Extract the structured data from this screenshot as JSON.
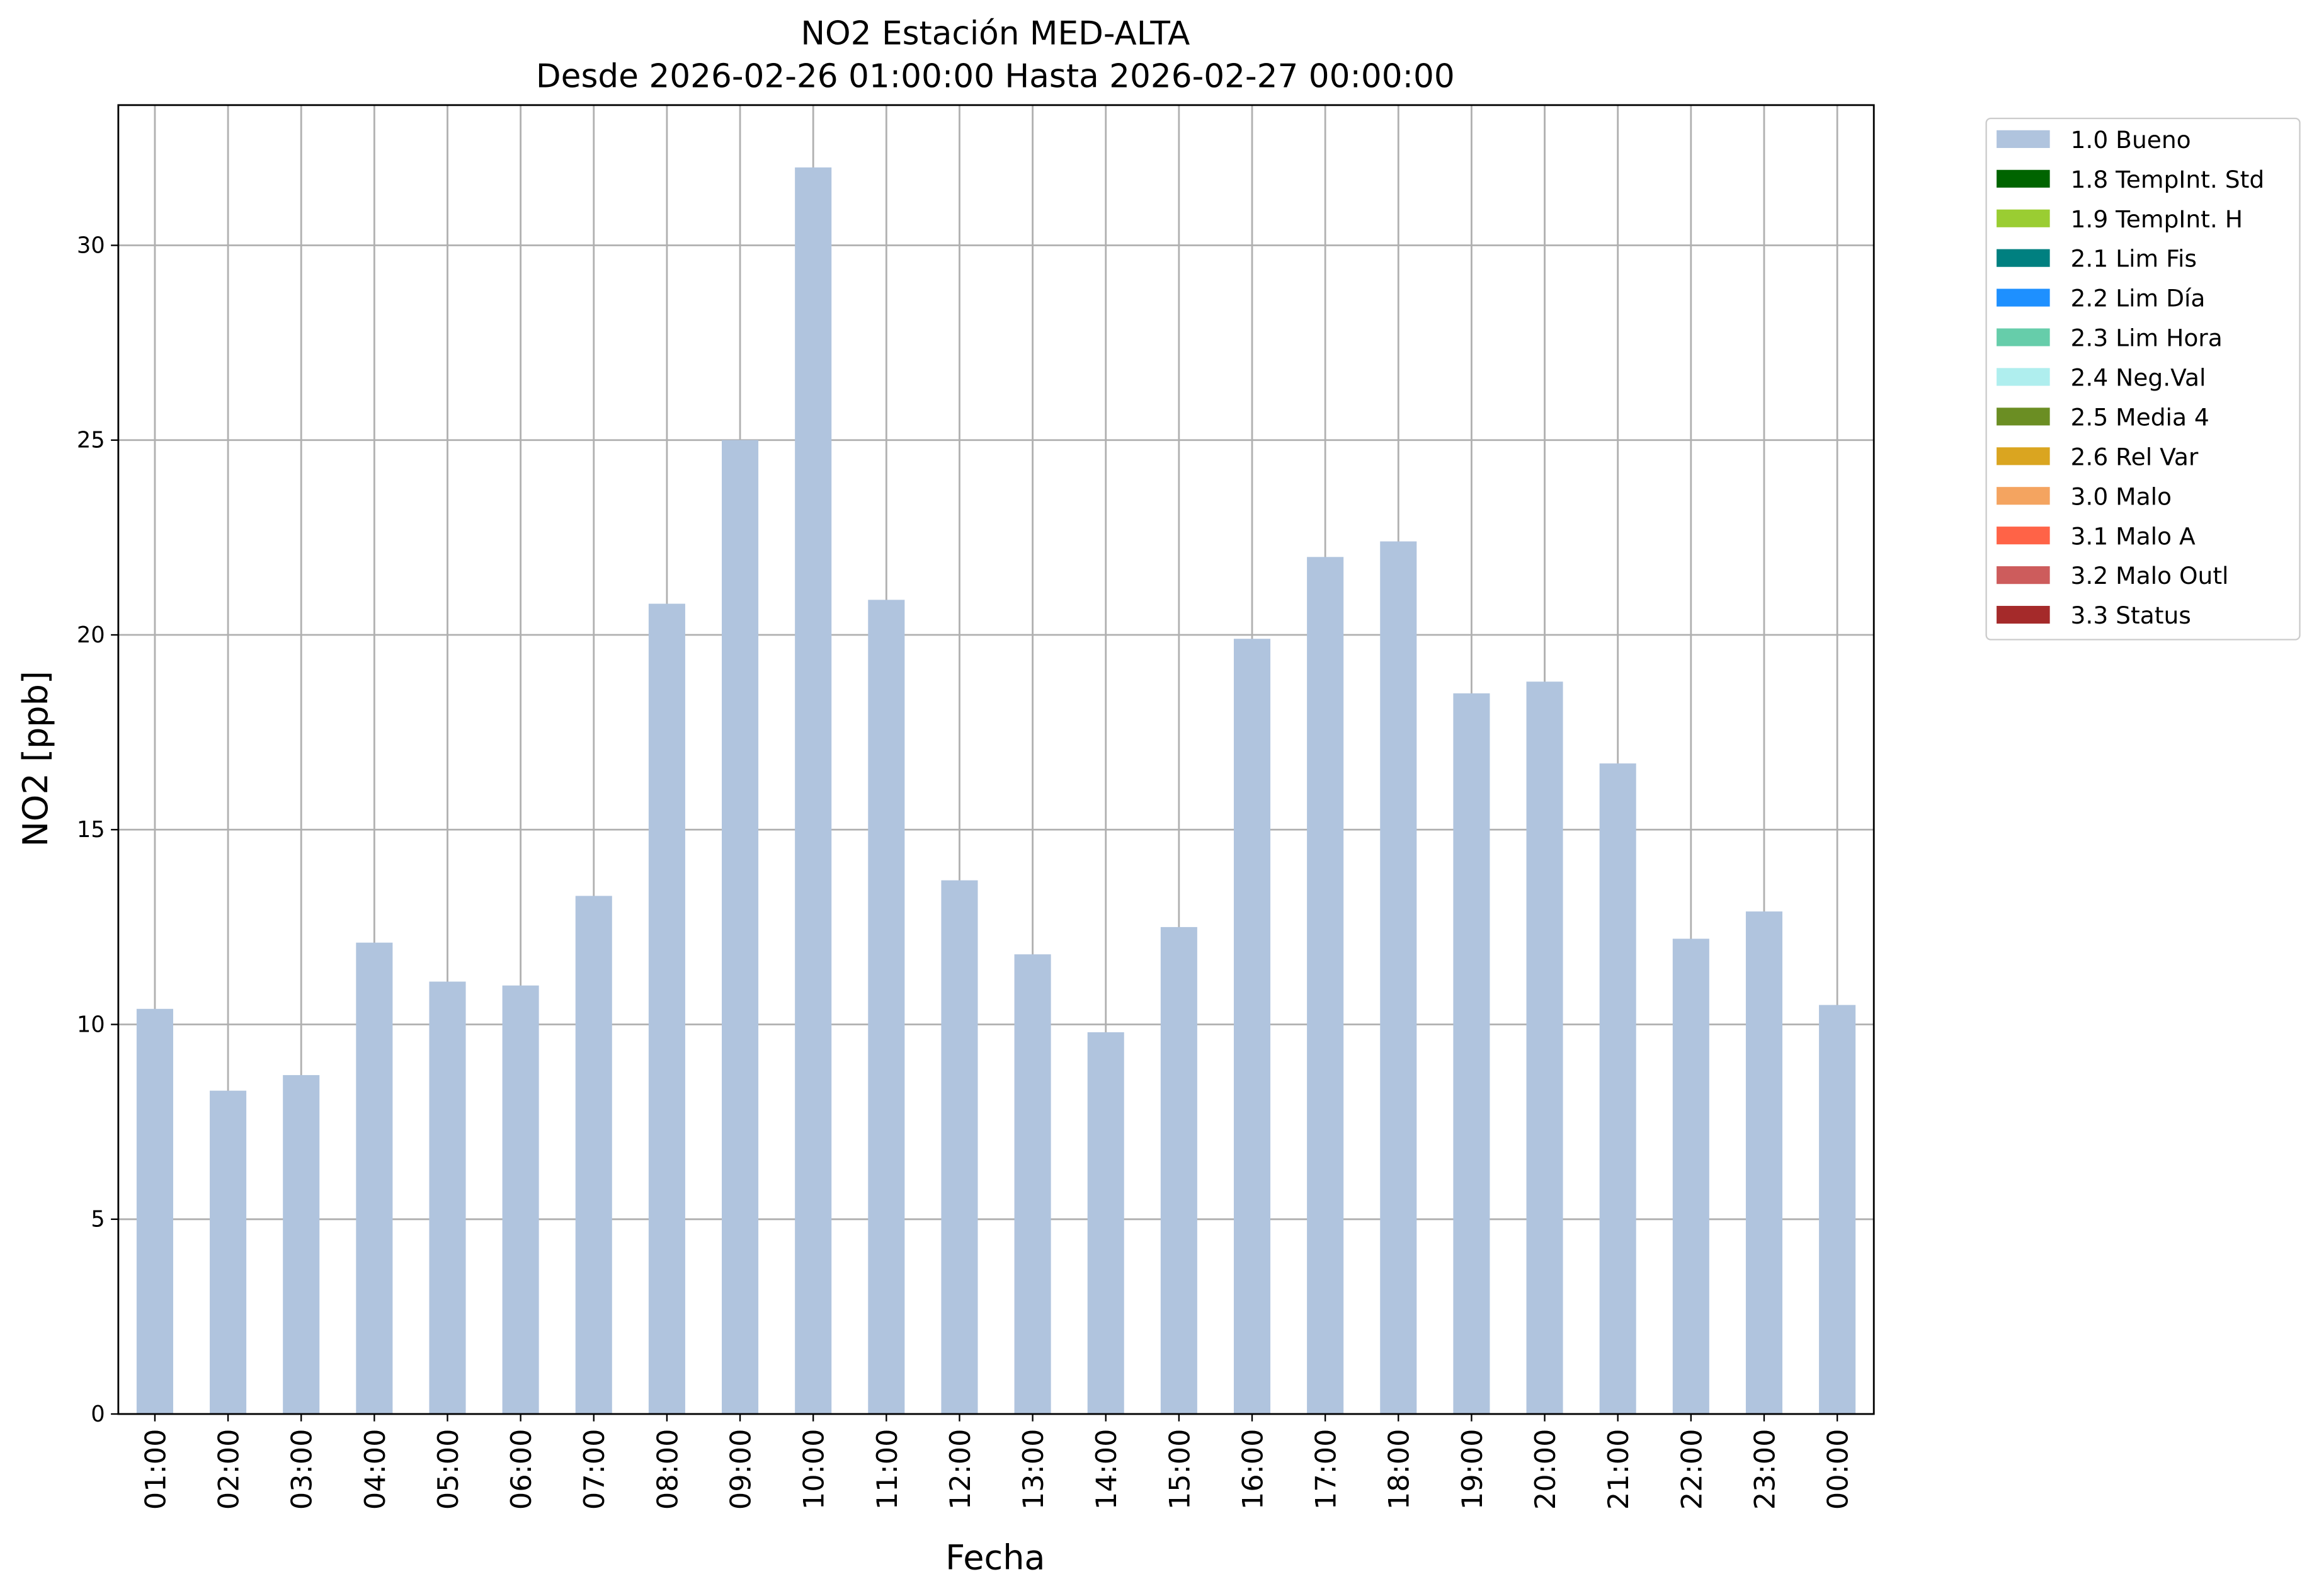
{
  "chart_data": {
    "type": "stacked-bar",
    "title": "NO2 Estación MED-ALTA",
    "subtitle": "Desde 2026-02-26 01:00:00 Hasta 2026-02-27 00:00:00",
    "x_label": "Fecha",
    "y_label": "NO2 [ppb]",
    "categories": [
      "01:00",
      "02:00",
      "03:00",
      "04:00",
      "05:00",
      "06:00",
      "07:00",
      "08:00",
      "09:00",
      "10:00",
      "11:00",
      "12:00",
      "13:00",
      "14:00",
      "15:00",
      "16:00",
      "17:00",
      "18:00",
      "19:00",
      "20:00",
      "21:00",
      "22:00",
      "23:00",
      "00:00"
    ],
    "series": [
      {
        "name": "1.0 Bueno",
        "color": "#b0c4de",
        "values": [
          10.4,
          8.3,
          8.7,
          12.1,
          11.1,
          11.0,
          13.3,
          20.8,
          25.0,
          32.0,
          20.9,
          13.7,
          11.8,
          9.8,
          12.5,
          19.9,
          22.0,
          22.4,
          18.5,
          18.8,
          16.7,
          12.2,
          12.9,
          10.5
        ]
      },
      {
        "name": "1.8 TempInt. Std",
        "color": "#006400",
        "values": [
          0,
          0,
          0,
          0,
          0,
          0,
          0,
          0,
          0,
          0,
          0,
          0,
          0,
          0,
          0,
          0,
          0,
          0,
          0,
          0,
          0,
          0,
          0,
          0
        ]
      },
      {
        "name": "1.9 TempInt. H",
        "color": "#9acd32",
        "values": [
          0,
          0,
          0,
          0,
          0,
          0,
          0,
          0,
          0,
          0,
          0,
          0,
          0,
          0,
          0,
          0,
          0,
          0,
          0,
          0,
          0,
          0,
          0,
          0
        ]
      },
      {
        "name": "2.1 Lim Fis",
        "color": "#008080",
        "values": [
          0,
          0,
          0,
          0,
          0,
          0,
          0,
          0,
          0,
          0,
          0,
          0,
          0,
          0,
          0,
          0,
          0,
          0,
          0,
          0,
          0,
          0,
          0,
          0
        ]
      },
      {
        "name": "2.2 Lim Día",
        "color": "#1e90ff",
        "values": [
          0,
          0,
          0,
          0,
          0,
          0,
          0,
          0,
          0,
          0,
          0,
          0,
          0,
          0,
          0,
          0,
          0,
          0,
          0,
          0,
          0,
          0,
          0,
          0
        ]
      },
      {
        "name": "2.3 Lim Hora",
        "color": "#66cdaa",
        "values": [
          0,
          0,
          0,
          0,
          0,
          0,
          0,
          0,
          0,
          0,
          0,
          0,
          0,
          0,
          0,
          0,
          0,
          0,
          0,
          0,
          0,
          0,
          0,
          0
        ]
      },
      {
        "name": "2.4 Neg.Val",
        "color": "#afeeee",
        "values": [
          0,
          0,
          0,
          0,
          0,
          0,
          0,
          0,
          0,
          0,
          0,
          0,
          0,
          0,
          0,
          0,
          0,
          0,
          0,
          0,
          0,
          0,
          0,
          0
        ]
      },
      {
        "name": "2.5 Media 4",
        "color": "#6b8e23",
        "values": [
          0,
          0,
          0,
          0,
          0,
          0,
          0,
          0,
          0,
          0,
          0,
          0,
          0,
          0,
          0,
          0,
          0,
          0,
          0,
          0,
          0,
          0,
          0,
          0
        ]
      },
      {
        "name": "2.6 Rel Var",
        "color": "#daa520",
        "values": [
          0,
          0,
          0,
          0,
          0,
          0,
          0,
          0,
          0,
          0,
          0,
          0,
          0,
          0,
          0,
          0,
          0,
          0,
          0,
          0,
          0,
          0,
          0,
          0
        ]
      },
      {
        "name": "3.0 Malo",
        "color": "#f4a460",
        "values": [
          0,
          0,
          0,
          0,
          0,
          0,
          0,
          0,
          0,
          0,
          0,
          0,
          0,
          0,
          0,
          0,
          0,
          0,
          0,
          0,
          0,
          0,
          0,
          0
        ]
      },
      {
        "name": "3.1 Malo A",
        "color": "#ff6347",
        "values": [
          0,
          0,
          0,
          0,
          0,
          0,
          0,
          0,
          0,
          0,
          0,
          0,
          0,
          0,
          0,
          0,
          0,
          0,
          0,
          0,
          0,
          0,
          0,
          0
        ]
      },
      {
        "name": "3.2 Malo Outl",
        "color": "#cd5c5c",
        "values": [
          0,
          0,
          0,
          0,
          0,
          0,
          0,
          0,
          0,
          0,
          0,
          0,
          0,
          0,
          0,
          0,
          0,
          0,
          0,
          0,
          0,
          0,
          0,
          0
        ]
      },
      {
        "name": "3.3 Status",
        "color": "#a52a2a",
        "values": [
          0,
          0,
          0,
          0,
          0,
          0,
          0,
          0,
          0,
          0,
          0,
          0,
          0,
          0,
          0,
          0,
          0,
          0,
          0,
          0,
          0,
          0,
          0,
          0
        ]
      }
    ],
    "ylim": [
      0,
      33.6
    ],
    "yticks": [
      0,
      5,
      10,
      15,
      20,
      25,
      30
    ],
    "grid": true,
    "legend": "outside-upper-right"
  }
}
